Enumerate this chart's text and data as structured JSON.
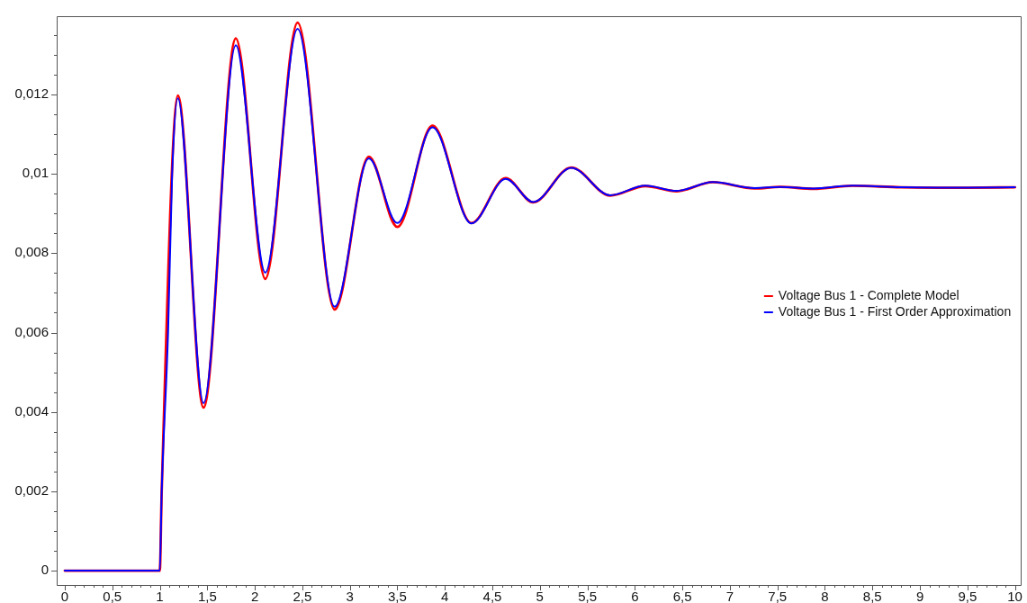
{
  "chart_data": {
    "type": "line",
    "x": [
      0,
      1.0,
      1.02,
      1.087,
      1.13,
      1.19,
      1.46,
      1.8,
      2.11,
      2.45,
      2.84,
      3.2,
      3.5,
      3.87,
      4.28,
      4.64,
      4.93,
      5.33,
      5.74,
      6.11,
      6.44,
      6.82,
      7.26,
      7.53,
      7.88,
      8.29,
      8.8,
      9.5,
      10
    ],
    "series": [
      {
        "name": "Voltage Bus 1 - Complete Model",
        "color": "#ff0000",
        "values": [
          0,
          0,
          0.002,
          null,
          null,
          0.01197,
          0.00411,
          0.01341,
          0.00735,
          0.01381,
          0.00658,
          0.01043,
          0.00866,
          0.01121,
          0.00876,
          0.00989,
          0.00928,
          0.01016,
          0.00945,
          0.00969,
          0.00956,
          0.00979,
          0.00963,
          0.00967,
          0.00962,
          0.0097,
          0.00966,
          0.00965,
          0.00966
        ]
      },
      {
        "name": "Voltage Bus 1 - First Order Approximation",
        "color": "#0000ff",
        "values": [
          0,
          0,
          0.002,
          0.006,
          0.01,
          0.0119,
          0.00422,
          0.01324,
          0.00751,
          0.01365,
          0.00665,
          0.01039,
          0.00876,
          0.01117,
          0.00875,
          0.00987,
          0.00929,
          0.01015,
          0.00946,
          0.0097,
          0.00957,
          0.00979,
          0.00964,
          0.00967,
          0.00963,
          0.0097,
          0.00966,
          0.00965,
          0.00966
        ]
      }
    ],
    "xlim": [
      -0.085,
      10.06
    ],
    "ylim": [
      -0.00036,
      0.01397
    ],
    "xticks": [
      0,
      {
        "value": 0.1,
        "label": null
      },
      {
        "value": 0.2,
        "label": null
      },
      {
        "value": 0.3,
        "label": null
      },
      {
        "value": 0.4,
        "label": null
      },
      {
        "value": 0.5,
        "label": "0,5"
      },
      {
        "value": 0.6,
        "label": null
      },
      {
        "value": 0.7,
        "label": null
      },
      {
        "value": 0.8,
        "label": null
      },
      {
        "value": 0.9,
        "label": null
      },
      1,
      {
        "value": 1.1,
        "label": null
      },
      {
        "value": 1.2,
        "label": null
      },
      {
        "value": 1.3,
        "label": null
      },
      {
        "value": 1.4,
        "label": null
      },
      {
        "value": 1.5,
        "label": "1,5"
      },
      {
        "value": 1.6,
        "label": null
      },
      {
        "value": 1.7,
        "label": null
      },
      {
        "value": 1.8,
        "label": null
      },
      {
        "value": 1.9,
        "label": null
      },
      2,
      {
        "value": 2.1,
        "label": null
      },
      {
        "value": 2.2,
        "label": null
      },
      {
        "value": 2.3,
        "label": null
      },
      {
        "value": 2.4,
        "label": null
      },
      {
        "value": 2.5,
        "label": "2,5"
      },
      {
        "value": 2.6,
        "label": null
      },
      {
        "value": 2.7,
        "label": null
      },
      {
        "value": 2.8,
        "label": null
      },
      {
        "value": 2.9,
        "label": null
      },
      3,
      {
        "value": 3.1,
        "label": null
      },
      {
        "value": 3.2,
        "label": null
      },
      {
        "value": 3.3,
        "label": null
      },
      {
        "value": 3.4,
        "label": null
      },
      {
        "value": 3.5,
        "label": "3,5"
      },
      {
        "value": 3.6,
        "label": null
      },
      {
        "value": 3.7,
        "label": null
      },
      {
        "value": 3.8,
        "label": null
      },
      {
        "value": 3.9,
        "label": null
      },
      4,
      {
        "value": 4.1,
        "label": null
      },
      {
        "value": 4.2,
        "label": null
      },
      {
        "value": 4.3,
        "label": null
      },
      {
        "value": 4.4,
        "label": null
      },
      {
        "value": 4.5,
        "label": "4,5"
      },
      {
        "value": 4.6,
        "label": null
      },
      {
        "value": 4.7,
        "label": null
      },
      {
        "value": 4.8,
        "label": null
      },
      {
        "value": 4.9,
        "label": null
      },
      5,
      {
        "value": 5.1,
        "label": null
      },
      {
        "value": 5.2,
        "label": null
      },
      {
        "value": 5.3,
        "label": null
      },
      {
        "value": 5.4,
        "label": null
      },
      {
        "value": 5.5,
        "label": "5,5"
      },
      {
        "value": 5.6,
        "label": null
      },
      {
        "value": 5.7,
        "label": null
      },
      {
        "value": 5.8,
        "label": null
      },
      {
        "value": 5.9,
        "label": null
      },
      6,
      {
        "value": 6.1,
        "label": null
      },
      {
        "value": 6.2,
        "label": null
      },
      {
        "value": 6.3,
        "label": null
      },
      {
        "value": 6.4,
        "label": null
      },
      {
        "value": 6.5,
        "label": "6,5"
      },
      {
        "value": 6.6,
        "label": null
      },
      {
        "value": 6.7,
        "label": null
      },
      {
        "value": 6.8,
        "label": null
      },
      {
        "value": 6.9,
        "label": null
      },
      7,
      {
        "value": 7.1,
        "label": null
      },
      {
        "value": 7.2,
        "label": null
      },
      {
        "value": 7.3,
        "label": null
      },
      {
        "value": 7.4,
        "label": null
      },
      {
        "value": 7.5,
        "label": "7,5"
      },
      {
        "value": 7.6,
        "label": null
      },
      {
        "value": 7.7,
        "label": null
      },
      {
        "value": 7.8,
        "label": null
      },
      {
        "value": 7.9,
        "label": null
      },
      8,
      {
        "value": 8.1,
        "label": null
      },
      {
        "value": 8.2,
        "label": null
      },
      {
        "value": 8.3,
        "label": null
      },
      {
        "value": 8.4,
        "label": null
      },
      {
        "value": 8.5,
        "label": "8,5"
      },
      {
        "value": 8.6,
        "label": null
      },
      {
        "value": 8.7,
        "label": null
      },
      {
        "value": 8.8,
        "label": null
      },
      {
        "value": 8.9,
        "label": null
      },
      9,
      {
        "value": 9.1,
        "label": null
      },
      {
        "value": 9.2,
        "label": null
      },
      {
        "value": 9.3,
        "label": null
      },
      {
        "value": 9.4,
        "label": null
      },
      {
        "value": 9.5,
        "label": "9,5"
      },
      {
        "value": 9.6,
        "label": null
      },
      {
        "value": 9.7,
        "label": null
      },
      {
        "value": 9.8,
        "label": null
      },
      {
        "value": 9.9,
        "label": null
      },
      10
    ],
    "yticks": [
      0,
      {
        "value": 0.0005,
        "label": null
      },
      {
        "value": 0.001,
        "label": null
      },
      {
        "value": 0.0015,
        "label": null
      },
      {
        "value": 0.002,
        "label": "0,002"
      },
      {
        "value": 0.0025,
        "label": null
      },
      {
        "value": 0.003,
        "label": null
      },
      {
        "value": 0.0035,
        "label": null
      },
      {
        "value": 0.004,
        "label": "0,004"
      },
      {
        "value": 0.0045,
        "label": null
      },
      {
        "value": 0.005,
        "label": null
      },
      {
        "value": 0.0055,
        "label": null
      },
      {
        "value": 0.006,
        "label": "0,006"
      },
      {
        "value": 0.0065,
        "label": null
      },
      {
        "value": 0.007,
        "label": null
      },
      {
        "value": 0.0075,
        "label": null
      },
      {
        "value": 0.008,
        "label": "0,008"
      },
      {
        "value": 0.0085,
        "label": null
      },
      {
        "value": 0.009,
        "label": null
      },
      {
        "value": 0.0095,
        "label": null
      },
      {
        "value": 0.01,
        "label": "0,01"
      },
      {
        "value": 0.0105,
        "label": null
      },
      {
        "value": 0.011,
        "label": null
      },
      {
        "value": 0.0115,
        "label": null
      },
      {
        "value": 0.012,
        "label": "0,012"
      },
      {
        "value": 0.0125,
        "label": null
      },
      {
        "value": 0.013,
        "label": null
      },
      {
        "value": 0.0135,
        "label": null
      }
    ],
    "grid": false,
    "legend": "right",
    "marker": "none",
    "line_style": "solid"
  }
}
